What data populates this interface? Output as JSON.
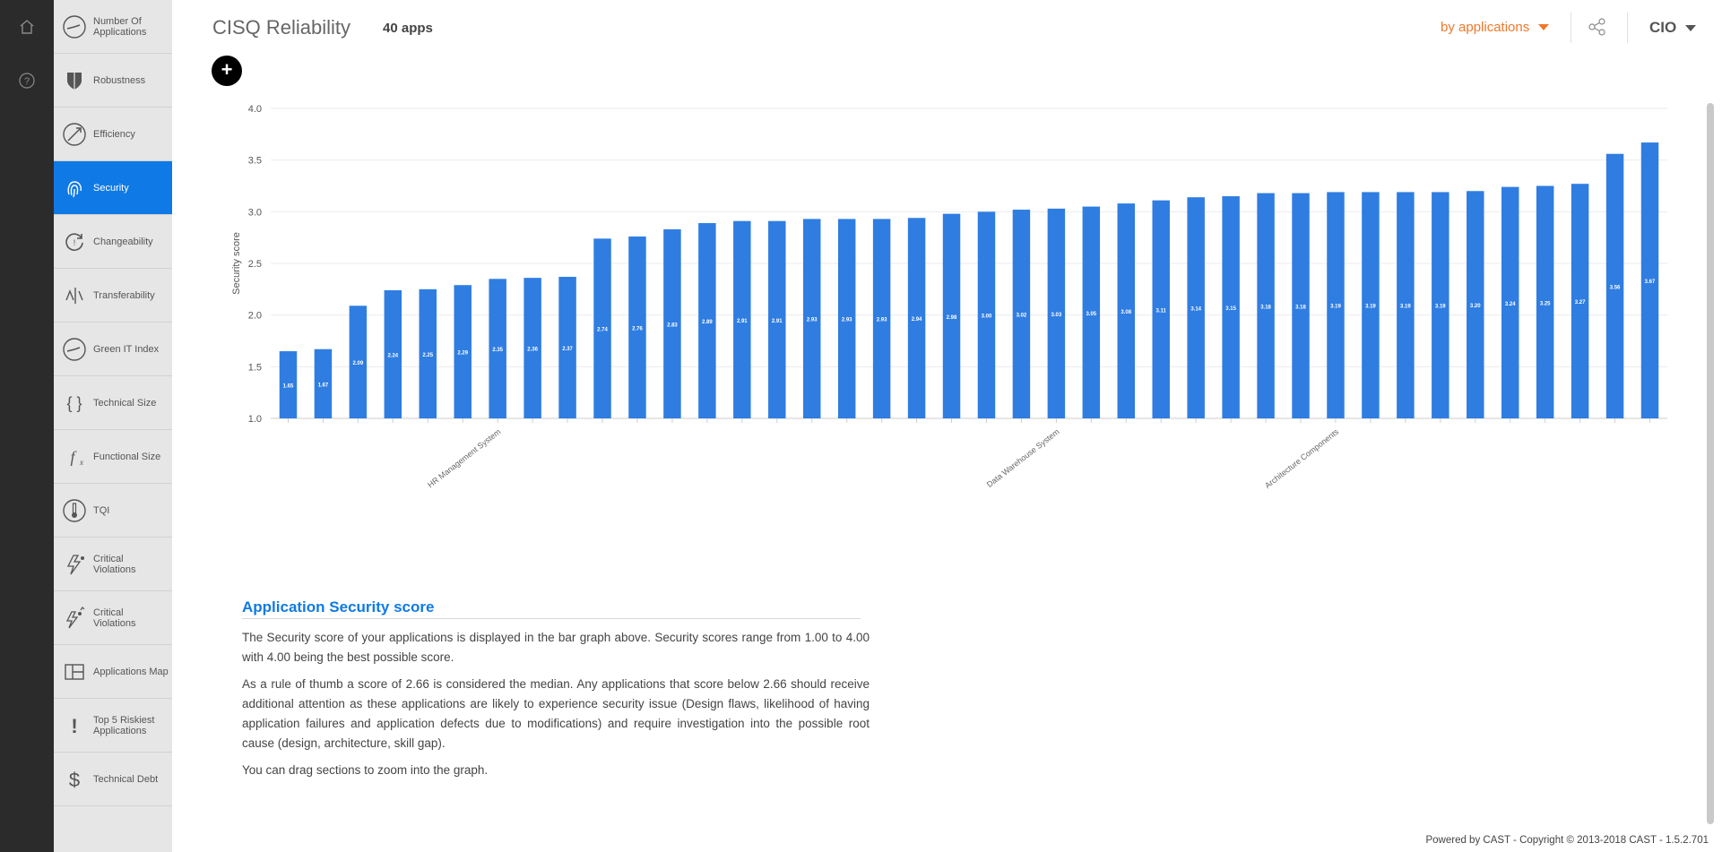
{
  "rail": {
    "home_icon": "home-icon",
    "help_icon": "help-icon"
  },
  "sidebar": {
    "items": [
      {
        "label": "Number Of Applications",
        "icon": "speedometer-icon",
        "active": false
      },
      {
        "label": "Robustness",
        "icon": "shield-icon",
        "active": false
      },
      {
        "label": "Efficiency",
        "icon": "rocket-icon",
        "active": false
      },
      {
        "label": "Security",
        "icon": "fingerprint-icon",
        "active": true
      },
      {
        "label": "Changeability",
        "icon": "refresh-icon",
        "active": false
      },
      {
        "label": "Transferability",
        "icon": "transfer-icon",
        "active": false
      },
      {
        "label": "Green IT Index",
        "icon": "speedometer-icon",
        "active": false
      },
      {
        "label": "Technical Size",
        "icon": "braces-icon",
        "active": false
      },
      {
        "label": "Functional Size",
        "icon": "function-icon",
        "active": false
      },
      {
        "label": "TQI",
        "icon": "thermometer-icon",
        "active": false
      },
      {
        "label": "Critical Violations",
        "icon": "lightning-icon",
        "active": false
      },
      {
        "label": "Critical Violations",
        "icon": "lightning-trend-icon",
        "active": false
      },
      {
        "label": "Applications Map",
        "icon": "map-icon",
        "active": false
      },
      {
        "label": "Top 5 Riskiest Applications",
        "icon": "exclamation-icon",
        "active": false
      },
      {
        "label": "Technical Debt",
        "icon": "dollar-icon",
        "active": false
      }
    ]
  },
  "header": {
    "title": "CISQ Reliability",
    "app_count": "40 apps",
    "filter_label": "by applications",
    "role_label": "CIO",
    "add_label": "+"
  },
  "colors": {
    "accent": "#0f7ae5",
    "bar": "#2f7de1",
    "filter": "#f0782a"
  },
  "chart_data": {
    "type": "bar",
    "ylabel": "Security score",
    "ylim": [
      1.0,
      4.0
    ],
    "yticks": [
      "1.0",
      "1.5",
      "2.0",
      "2.5",
      "3.0",
      "3.5",
      "4.0"
    ],
    "categories": [
      "",
      "",
      "",
      "",
      "",
      "",
      "HR Management System",
      "",
      "",
      "",
      "",
      "",
      "",
      "",
      "",
      "",
      "",
      "",
      "",
      "",
      "",
      "",
      "Data Warehouse System",
      "",
      "",
      "",
      "",
      "",
      "",
      "",
      "Architecture Components",
      "",
      "",
      "",
      "",
      "",
      "",
      "",
      "",
      ""
    ],
    "values": [
      1.65,
      1.67,
      2.09,
      2.24,
      2.25,
      2.29,
      2.35,
      2.36,
      2.37,
      2.74,
      2.76,
      2.83,
      2.89,
      2.91,
      2.91,
      2.93,
      2.93,
      2.93,
      2.94,
      2.98,
      3.0,
      3.02,
      3.03,
      3.05,
      3.08,
      3.11,
      3.14,
      3.15,
      3.18,
      3.18,
      3.19,
      3.19,
      3.19,
      3.19,
      3.2,
      3.24,
      3.25,
      3.27,
      3.56,
      3.67
    ],
    "data_labels": [
      "1.65",
      "1.67",
      "2.09",
      "2.24",
      "2.25",
      "2.29",
      "2.35",
      "2.36",
      "2.37",
      "2.74",
      "2.76",
      "2.83",
      "2.89",
      "2.91",
      "2.91",
      "2.93",
      "2.93",
      "2.93",
      "2.94",
      "2.98",
      "3.00",
      "3.02",
      "3.03",
      "3.05",
      "3.08",
      "3.11",
      "3.14",
      "3.15",
      "3.18",
      "3.18",
      "3.19",
      "3.19",
      "3.19",
      "3.19",
      "3.20",
      "3.24",
      "3.25",
      "3.27",
      "3.56",
      "3.67"
    ],
    "grid": true,
    "legend": "none"
  },
  "description": {
    "title": "Application Security score",
    "p1": "The Security score of your applications is displayed in the bar graph above. Security scores range from 1.00 to 4.00 with 4.00 being the best possible score.",
    "p2": "As a rule of thumb a score of 2.66 is considered the median. Any applications that score below 2.66 should receive additional attention as these applications are likely to experience security issue (Design flaws, likelihood of having application failures and application defects due to modifications) and require investigation into the possible root cause (design, architecture, skill gap).",
    "p3": "You can drag sections to zoom into the graph."
  },
  "footer": {
    "text": "Powered by CAST - Copyright © 2013-2018 CAST - 1.5.2.701"
  }
}
